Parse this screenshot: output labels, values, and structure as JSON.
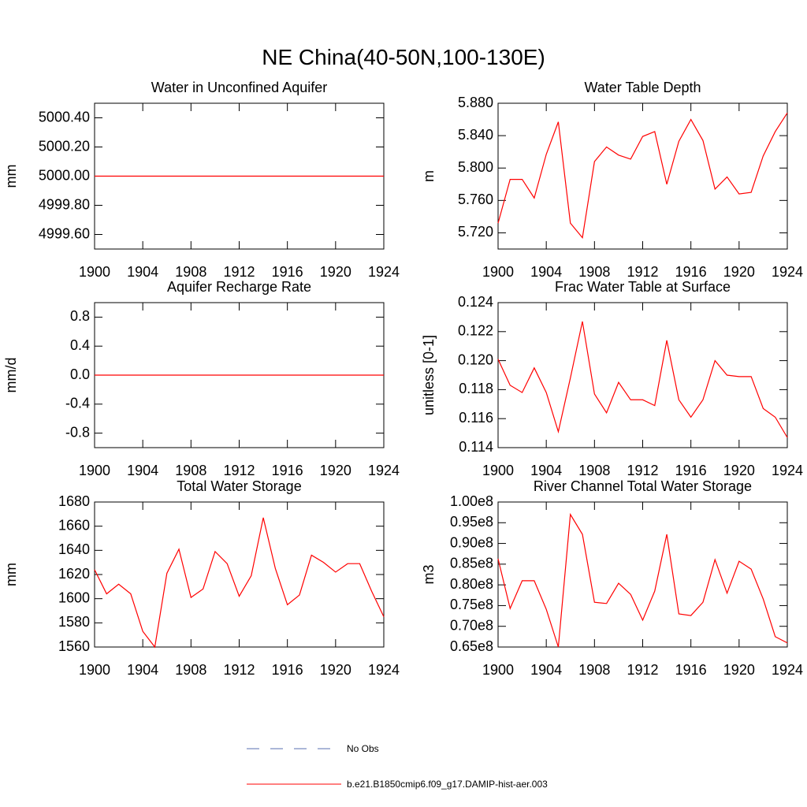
{
  "title": "NE China(40-50N,100-130E)",
  "legend": [
    {
      "name": "No Obs",
      "color": "#5a6fb0",
      "style": "dashed"
    },
    {
      "name": "b.e21.B1850cmip6.f09_g17.DAMIP-hist-aer.003",
      "color": "#ff0000",
      "style": "solid"
    }
  ],
  "chart_data": [
    {
      "type": "line",
      "title": "Water in Unconfined Aquifer",
      "y_label": "mm",
      "color": "#ff0000",
      "x": [
        1900,
        1901,
        1902,
        1903,
        1904,
        1905,
        1906,
        1907,
        1908,
        1909,
        1910,
        1911,
        1912,
        1913,
        1914,
        1915,
        1916,
        1917,
        1918,
        1919,
        1920,
        1921,
        1922,
        1923,
        1924
      ],
      "values": [
        5000,
        5000,
        5000,
        5000,
        5000,
        5000,
        5000,
        5000,
        5000,
        5000,
        5000,
        5000,
        5000,
        5000,
        5000,
        5000,
        5000,
        5000,
        5000,
        5000,
        5000,
        5000,
        5000,
        5000,
        5000
      ],
      "xlim": [
        1900,
        1924
      ],
      "xticks": [
        1900,
        1904,
        1908,
        1912,
        1916,
        1920,
        1924
      ],
      "ylim": [
        4999.5,
        5000.5
      ],
      "yticks": [
        {
          "value": 4999.6,
          "label": "4999.60"
        },
        {
          "value": 4999.8,
          "label": "4999.80"
        },
        {
          "value": 5000,
          "label": "5000.00"
        },
        {
          "value": 5000.2,
          "label": "5000.20"
        },
        {
          "value": 5000.4,
          "label": "5000.40"
        }
      ]
    },
    {
      "type": "line",
      "title": "Water Table Depth",
      "y_label": "m",
      "color": "#ff0000",
      "x": [
        1900,
        1901,
        1902,
        1903,
        1904,
        1905,
        1906,
        1907,
        1908,
        1909,
        1910,
        1911,
        1912,
        1913,
        1914,
        1915,
        1916,
        1917,
        1918,
        1919,
        1920,
        1921,
        1922,
        1923,
        1924
      ],
      "values": [
        5.732,
        5.786,
        5.786,
        5.763,
        5.817,
        5.857,
        5.732,
        5.714,
        5.808,
        5.826,
        5.816,
        5.811,
        5.839,
        5.845,
        5.78,
        5.833,
        5.86,
        5.834,
        5.774,
        5.789,
        5.768,
        5.77,
        5.815,
        5.845,
        5.868
      ],
      "xlim": [
        1900,
        1924
      ],
      "xticks": [
        1900,
        1904,
        1908,
        1912,
        1916,
        1920,
        1924
      ],
      "ylim": [
        5.7,
        5.88
      ],
      "yticks": [
        {
          "value": 5.72,
          "label": "5.720"
        },
        {
          "value": 5.76,
          "label": "5.760"
        },
        {
          "value": 5.8,
          "label": "5.800"
        },
        {
          "value": 5.84,
          "label": "5.840"
        },
        {
          "value": 5.88,
          "label": "5.880"
        }
      ]
    },
    {
      "type": "line",
      "title": "Aquifer Recharge Rate",
      "y_label": "mm/d",
      "color": "#ff0000",
      "x": [
        1900,
        1901,
        1902,
        1903,
        1904,
        1905,
        1906,
        1907,
        1908,
        1909,
        1910,
        1911,
        1912,
        1913,
        1914,
        1915,
        1916,
        1917,
        1918,
        1919,
        1920,
        1921,
        1922,
        1923,
        1924
      ],
      "values": [
        0,
        0,
        0,
        0,
        0,
        0,
        0,
        0,
        0,
        0,
        0,
        0,
        0,
        0,
        0,
        0,
        0,
        0,
        0,
        0,
        0,
        0,
        0,
        0,
        0
      ],
      "xlim": [
        1900,
        1924
      ],
      "xticks": [
        1900,
        1904,
        1908,
        1912,
        1916,
        1920,
        1924
      ],
      "ylim": [
        -1,
        1
      ],
      "yticks": [
        -0.8,
        -0.4,
        {
          "value": 0,
          "label": "0.0"
        },
        0.4,
        0.8
      ]
    },
    {
      "type": "line",
      "title": "Frac Water Table at Surface",
      "y_label": "unitless [0-1]",
      "color": "#ff0000",
      "x": [
        1900,
        1901,
        1902,
        1903,
        1904,
        1905,
        1906,
        1907,
        1908,
        1909,
        1910,
        1911,
        1912,
        1913,
        1914,
        1915,
        1916,
        1917,
        1918,
        1919,
        1920,
        1921,
        1922,
        1923,
        1924
      ],
      "values": [
        0.1201,
        0.1183,
        0.1178,
        0.1195,
        0.1178,
        0.1151,
        0.1188,
        0.1227,
        0.1177,
        0.1164,
        0.1185,
        0.1173,
        0.1173,
        0.1169,
        0.1214,
        0.1173,
        0.1161,
        0.1173,
        0.12,
        0.119,
        0.1189,
        0.1189,
        0.1167,
        0.1161,
        0.1147
      ],
      "xlim": [
        1900,
        1924
      ],
      "xticks": [
        1900,
        1904,
        1908,
        1912,
        1916,
        1920,
        1924
      ],
      "ylim": [
        0.114,
        0.124
      ],
      "yticks": [
        0.114,
        0.116,
        0.118,
        {
          "value": 0.12,
          "label": "0.120"
        },
        0.122,
        0.124
      ]
    },
    {
      "type": "line",
      "title": "Total Water Storage",
      "y_label": "mm",
      "color": "#ff0000",
      "x": [
        1900,
        1901,
        1902,
        1903,
        1904,
        1905,
        1906,
        1907,
        1908,
        1909,
        1910,
        1911,
        1912,
        1913,
        1914,
        1915,
        1916,
        1917,
        1918,
        1919,
        1920,
        1921,
        1922,
        1923,
        1924
      ],
      "values": [
        1624,
        1604,
        1612,
        1604,
        1573,
        1560,
        1621,
        1641,
        1601,
        1608,
        1639,
        1629,
        1602,
        1619,
        1667,
        1625,
        1595,
        1603,
        1636,
        1630,
        1622,
        1629,
        1629,
        1606,
        1585
      ],
      "xlim": [
        1900,
        1924
      ],
      "xticks": [
        1900,
        1904,
        1908,
        1912,
        1916,
        1920,
        1924
      ],
      "ylim": [
        1560,
        1680
      ],
      "yticks": [
        1560,
        1580,
        1600,
        1620,
        1640,
        1660,
        1680
      ]
    },
    {
      "type": "line",
      "title": "River Channel Total Water Storage",
      "y_label": "m3",
      "color": "#ff0000",
      "x": [
        1900,
        1901,
        1902,
        1903,
        1904,
        1905,
        1906,
        1907,
        1908,
        1909,
        1910,
        1911,
        1912,
        1913,
        1914,
        1915,
        1916,
        1917,
        1918,
        1919,
        1920,
        1921,
        1922,
        1923,
        1924
      ],
      "values": [
        86300000,
        74300000,
        81000000,
        81000000,
        74100000,
        65000000,
        97000000,
        92200000,
        75800000,
        75500000,
        80400000,
        77700000,
        71500000,
        78500000,
        92200000,
        73000000,
        72600000,
        75800000,
        86100000,
        78000000,
        85700000,
        83800000,
        76600000,
        67500000,
        66000000
      ],
      "xlim": [
        1900,
        1924
      ],
      "xticks": [
        1900,
        1904,
        1908,
        1912,
        1916,
        1920,
        1924
      ],
      "ylim": [
        65000000,
        100000000
      ],
      "yticks": [
        {
          "value": 65000000,
          "label": "0.65e8"
        },
        {
          "value": 70000000,
          "label": "0.70e8"
        },
        {
          "value": 75000000,
          "label": "0.75e8"
        },
        {
          "value": 80000000,
          "label": "0.80e8"
        },
        {
          "value": 85000000,
          "label": "0.85e8"
        },
        {
          "value": 90000000,
          "label": "0.90e8"
        },
        {
          "value": 95000000,
          "label": "0.95e8"
        },
        {
          "value": 100000000,
          "label": "1.00e8"
        }
      ]
    }
  ]
}
